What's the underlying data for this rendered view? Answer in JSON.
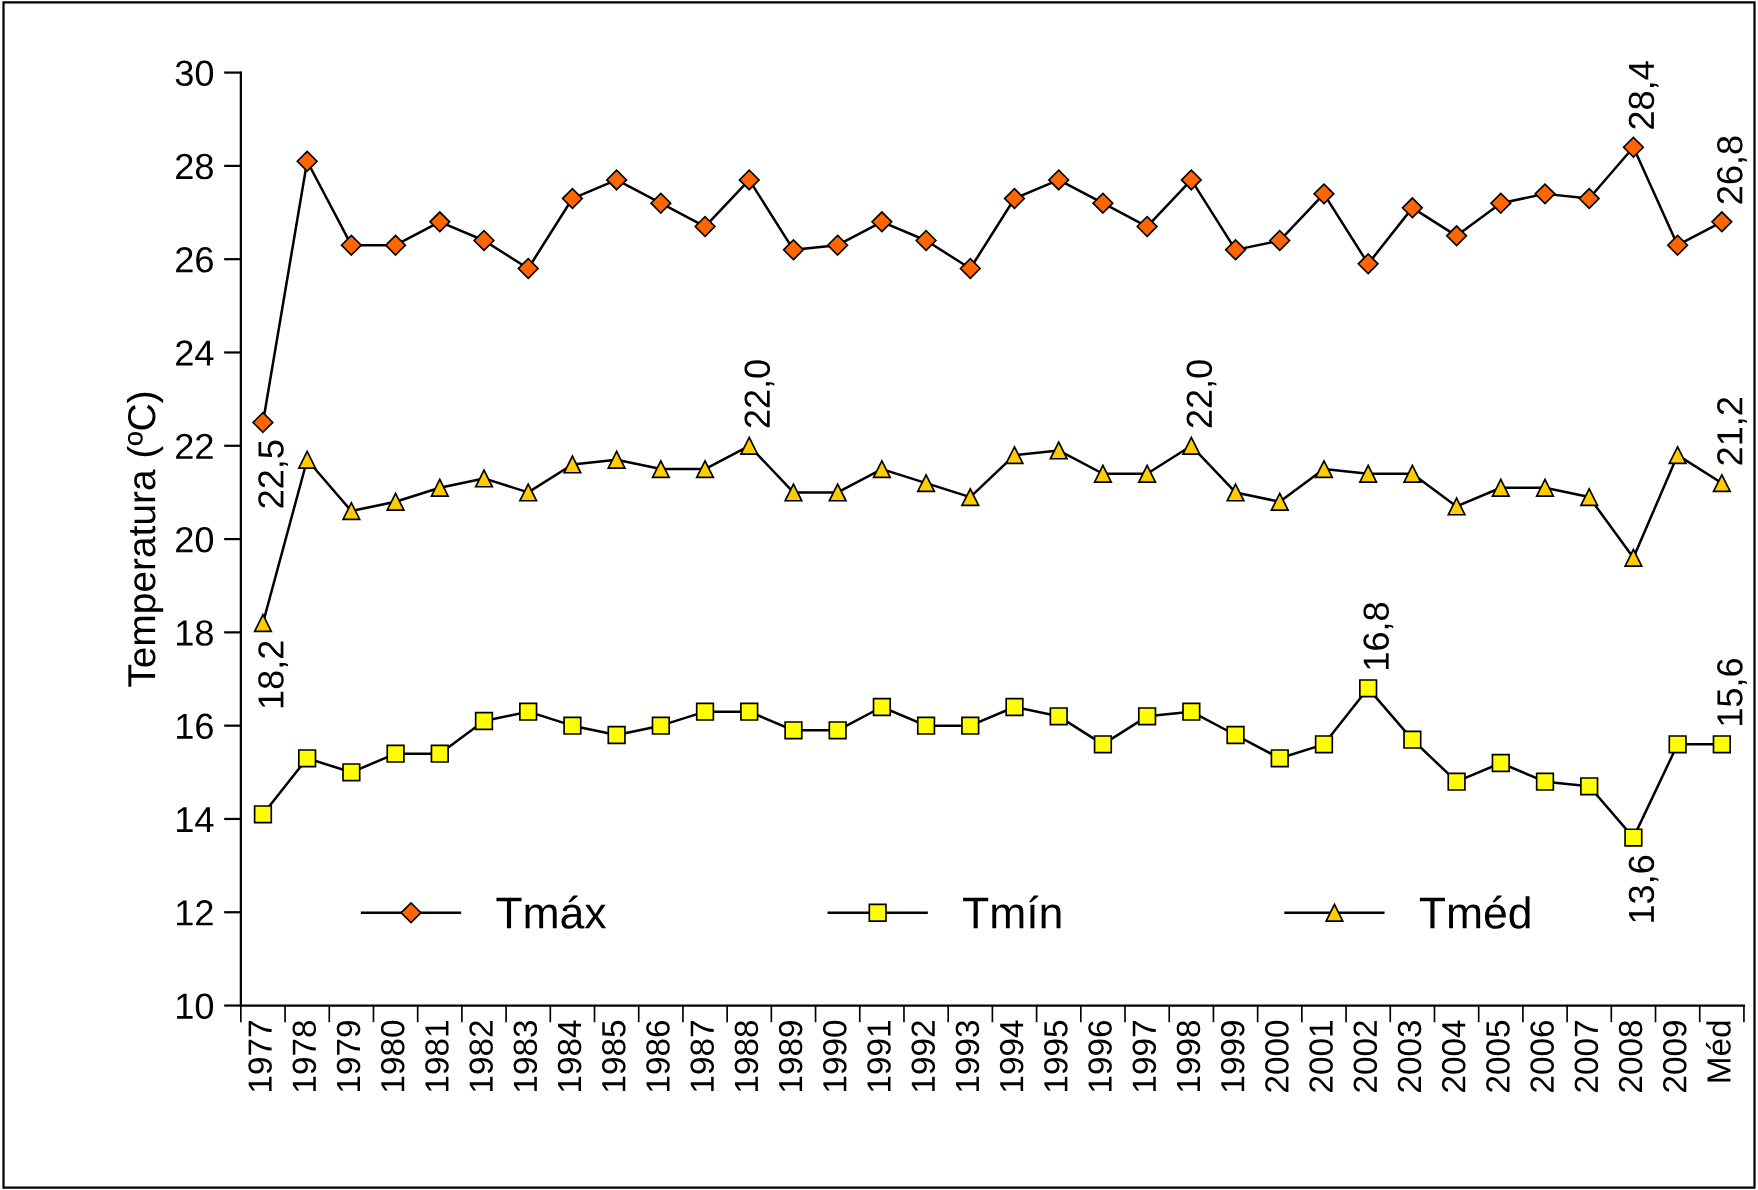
{
  "chart_data": {
    "type": "line",
    "ylabel": "Temperatura (ºC)",
    "categories": [
      "1977",
      "1978",
      "1979",
      "1980",
      "1981",
      "1982",
      "1983",
      "1984",
      "1985",
      "1986",
      "1987",
      "1988",
      "1989",
      "1990",
      "1991",
      "1992",
      "1993",
      "1994",
      "1995",
      "1996",
      "1997",
      "1998",
      "1999",
      "2000",
      "2001",
      "2002",
      "2003",
      "2004",
      "2005",
      "2006",
      "2007",
      "2008",
      "2009",
      "Méd"
    ],
    "ylim": [
      10,
      30
    ],
    "yticks": [
      10,
      12,
      14,
      16,
      18,
      20,
      22,
      24,
      26,
      28,
      30
    ],
    "grid": false,
    "legend": "bottom",
    "line_style": "solid",
    "series": [
      {
        "name": "Tmáx",
        "color": "#ff6600",
        "marker": "diamond",
        "values": [
          22.5,
          28.1,
          26.3,
          26.3,
          26.8,
          26.4,
          25.8,
          27.3,
          27.7,
          27.2,
          26.7,
          27.7,
          26.2,
          26.3,
          26.8,
          26.4,
          25.8,
          27.3,
          27.7,
          27.2,
          26.7,
          27.7,
          26.2,
          26.4,
          27.4,
          25.9,
          27.1,
          26.5,
          27.2,
          27.4,
          27.3,
          28.4,
          26.3,
          26.8
        ],
        "value_labels": [
          "22,5",
          null,
          null,
          null,
          null,
          null,
          null,
          null,
          null,
          null,
          null,
          null,
          null,
          null,
          null,
          null,
          null,
          null,
          null,
          null,
          null,
          null,
          null,
          null,
          null,
          null,
          null,
          null,
          null,
          null,
          null,
          "28,4",
          null,
          "26,8"
        ]
      },
      {
        "name": "Tmín",
        "color": "#ffff00",
        "marker": "square",
        "values": [
          14.1,
          15.3,
          15.0,
          15.4,
          15.4,
          16.1,
          16.3,
          16.0,
          15.8,
          16.0,
          16.3,
          16.3,
          15.9,
          15.9,
          16.4,
          16.0,
          16.0,
          16.4,
          16.2,
          15.6,
          16.2,
          16.3,
          15.8,
          15.3,
          15.6,
          16.8,
          15.7,
          14.8,
          15.2,
          14.8,
          14.7,
          13.6,
          15.6,
          15.6
        ],
        "value_labels": [
          null,
          null,
          null,
          null,
          null,
          null,
          null,
          null,
          null,
          null,
          null,
          null,
          null,
          null,
          null,
          null,
          null,
          null,
          null,
          null,
          null,
          null,
          null,
          null,
          null,
          "16,8",
          null,
          null,
          null,
          null,
          null,
          "13,6",
          null,
          "15,6"
        ]
      },
      {
        "name": "Tméd",
        "color": "#ffcc00",
        "marker": "triangle",
        "values": [
          18.2,
          21.7,
          20.6,
          20.8,
          21.1,
          21.3,
          21.0,
          21.6,
          21.7,
          21.5,
          21.5,
          22.0,
          21.0,
          21.0,
          21.5,
          21.2,
          20.9,
          21.8,
          21.9,
          21.4,
          21.4,
          22.0,
          21.0,
          20.8,
          21.5,
          21.4,
          21.4,
          20.7,
          21.1,
          21.1,
          20.9,
          19.6,
          21.8,
          21.2
        ],
        "value_labels": [
          "18,2",
          null,
          null,
          null,
          null,
          null,
          null,
          null,
          null,
          null,
          null,
          "22,0",
          null,
          null,
          null,
          null,
          null,
          null,
          null,
          null,
          null,
          "22,0",
          null,
          null,
          null,
          null,
          null,
          null,
          null,
          null,
          null,
          null,
          null,
          "21,2"
        ]
      }
    ]
  }
}
